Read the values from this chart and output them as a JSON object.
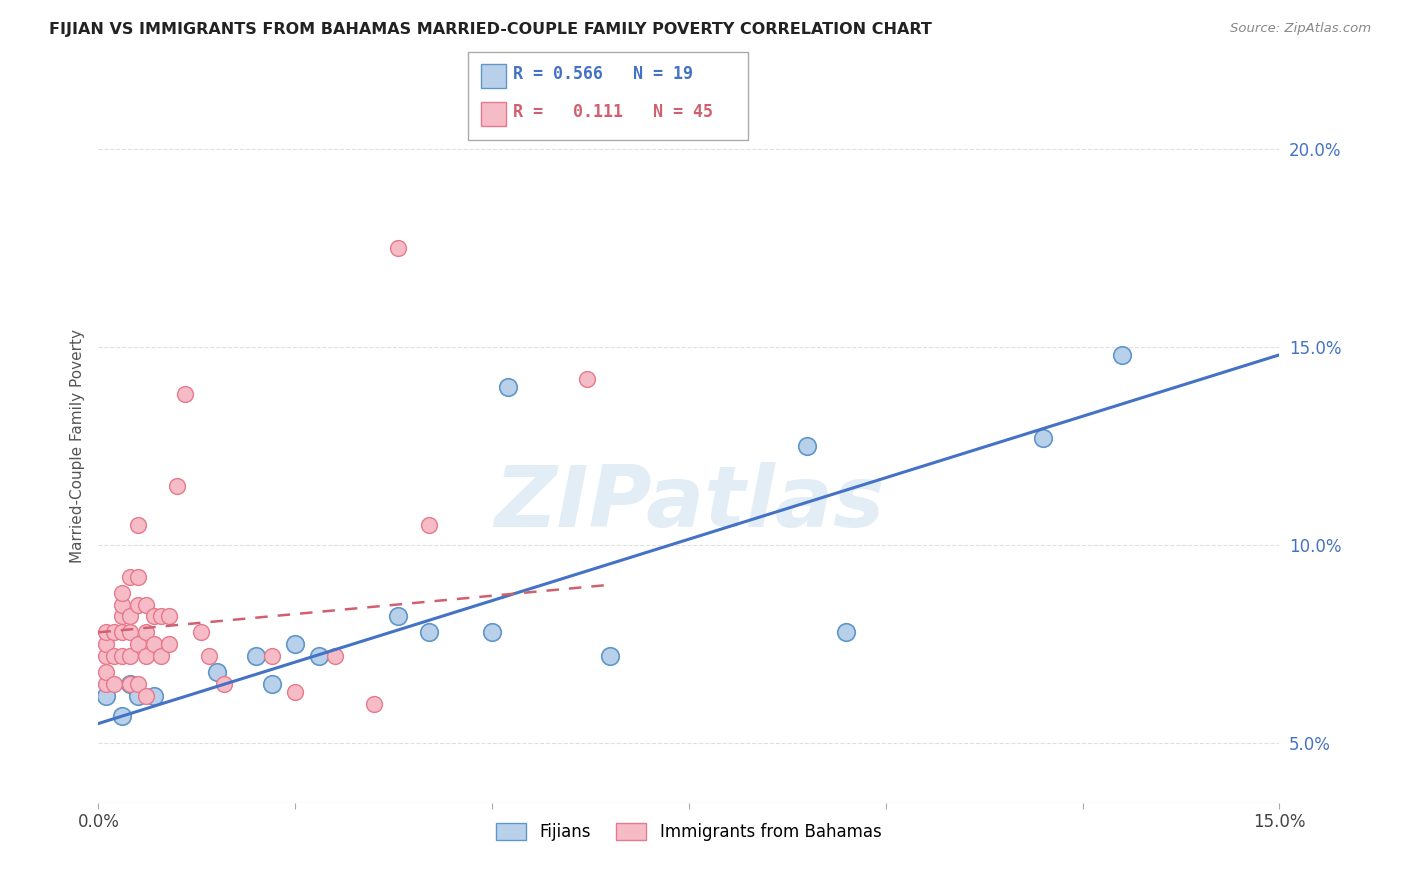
{
  "title": "FIJIAN VS IMMIGRANTS FROM BAHAMAS MARRIED-COUPLE FAMILY POVERTY CORRELATION CHART",
  "source": "Source: ZipAtlas.com",
  "ylabel_label": "Married-Couple Family Poverty",
  "xlim": [
    0.0,
    0.15
  ],
  "ylim": [
    0.035,
    0.215
  ],
  "xticks": [
    0.0,
    0.025,
    0.05,
    0.075,
    0.1,
    0.125,
    0.15
  ],
  "yticks": [
    0.05,
    0.1,
    0.15,
    0.2
  ],
  "legend_blue_r": "0.566",
  "legend_blue_n": "19",
  "legend_pink_r": "0.111",
  "legend_pink_n": "45",
  "legend_blue_label": "Fijians",
  "legend_pink_label": "Immigrants from Bahamas",
  "blue_scatter_x": [
    0.001,
    0.003,
    0.004,
    0.005,
    0.007,
    0.015,
    0.02,
    0.022,
    0.025,
    0.028,
    0.038,
    0.042,
    0.05,
    0.052,
    0.065,
    0.09,
    0.095,
    0.12,
    0.13
  ],
  "blue_scatter_y": [
    0.062,
    0.057,
    0.065,
    0.062,
    0.062,
    0.068,
    0.072,
    0.065,
    0.075,
    0.072,
    0.082,
    0.078,
    0.078,
    0.14,
    0.072,
    0.125,
    0.078,
    0.127,
    0.148
  ],
  "pink_scatter_x": [
    0.001,
    0.001,
    0.001,
    0.001,
    0.001,
    0.002,
    0.002,
    0.002,
    0.003,
    0.003,
    0.003,
    0.003,
    0.003,
    0.004,
    0.004,
    0.004,
    0.004,
    0.004,
    0.005,
    0.005,
    0.005,
    0.005,
    0.005,
    0.006,
    0.006,
    0.006,
    0.006,
    0.007,
    0.007,
    0.008,
    0.008,
    0.009,
    0.009,
    0.01,
    0.011,
    0.013,
    0.014,
    0.016,
    0.022,
    0.025,
    0.03,
    0.035,
    0.038,
    0.042,
    0.062
  ],
  "pink_scatter_y": [
    0.065,
    0.068,
    0.072,
    0.075,
    0.078,
    0.065,
    0.072,
    0.078,
    0.072,
    0.078,
    0.082,
    0.085,
    0.088,
    0.065,
    0.072,
    0.078,
    0.082,
    0.092,
    0.065,
    0.075,
    0.085,
    0.092,
    0.105,
    0.062,
    0.072,
    0.078,
    0.085,
    0.075,
    0.082,
    0.072,
    0.082,
    0.075,
    0.082,
    0.115,
    0.138,
    0.078,
    0.072,
    0.065,
    0.072,
    0.063,
    0.072,
    0.06,
    0.175,
    0.105,
    0.142
  ],
  "blue_color": "#b8d0ea",
  "blue_edge_color": "#6096c8",
  "pink_color": "#f5bcc8",
  "pink_edge_color": "#e8788a",
  "blue_line_color": "#4472c4",
  "pink_line_color": "#d06070",
  "watermark": "ZIPatlas",
  "background_color": "#ffffff",
  "grid_color": "#e0e0e0"
}
